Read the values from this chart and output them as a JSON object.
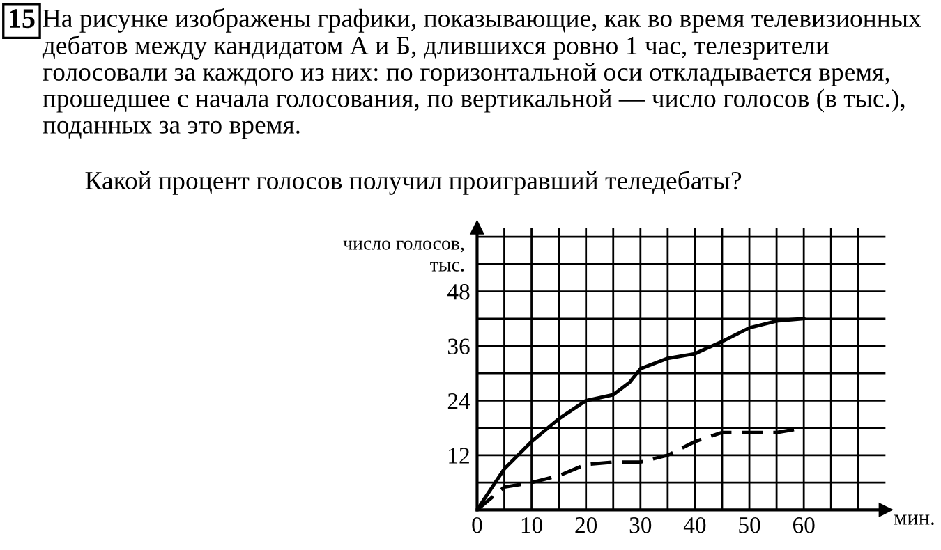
{
  "chart_data": {
    "type": "line",
    "title": "На рисунке изображены графики, показывающие, как во время телевизионных дебатов между кандидатом А и Б, длившихся ровно 1 час, телезрители голосовали за каждого из них: по горизонтальной оси откладывается время, прошедшее с начала голосования, по вертикальной — число голосов (в тыс.), поданных за это время.",
    "subtitle": "Какой процент голосов получил проигравший теледебаты?",
    "annotations": [
      "15"
    ],
    "xlabel": "мин.",
    "ylabel": "число голосов,\nтыс.",
    "x": [
      0,
      5,
      10,
      15,
      20,
      25,
      28,
      30,
      35,
      40,
      45,
      50,
      55,
      60
    ],
    "series": [
      {
        "color": "#000000",
        "line_style": "solid",
        "values": [
          0,
          9,
          15,
          20,
          24,
          25.3,
          28,
          31,
          33.3,
          34.3,
          37,
          40,
          41.5,
          42
        ]
      },
      {
        "color": "#000000",
        "line_style": "dashed",
        "values": [
          0,
          5,
          6,
          7.5,
          10,
          10.5,
          10.5,
          10.5,
          12,
          15,
          17,
          17,
          17,
          18
        ]
      }
    ],
    "xlim": [
      0,
      75
    ],
    "ylim": [
      0,
      62
    ],
    "xticks": [
      0,
      {
        "value": 5,
        "label": null
      },
      10,
      {
        "value": 15,
        "label": null
      },
      20,
      {
        "value": 25,
        "label": null
      },
      30,
      {
        "value": 35,
        "label": null
      },
      40,
      {
        "value": 45,
        "label": null
      },
      50,
      {
        "value": 55,
        "label": null
      },
      60,
      {
        "value": 65,
        "label": null
      },
      {
        "value": 70,
        "label": null
      }
    ],
    "yticks": [
      {
        "value": 6,
        "label": null
      },
      12,
      {
        "value": 18,
        "label": null
      },
      24,
      {
        "value": 30,
        "label": null
      },
      36,
      {
        "value": 42,
        "label": null
      },
      48,
      {
        "value": 54,
        "label": null
      },
      {
        "value": 60,
        "label": null
      }
    ],
    "grid": true
  }
}
